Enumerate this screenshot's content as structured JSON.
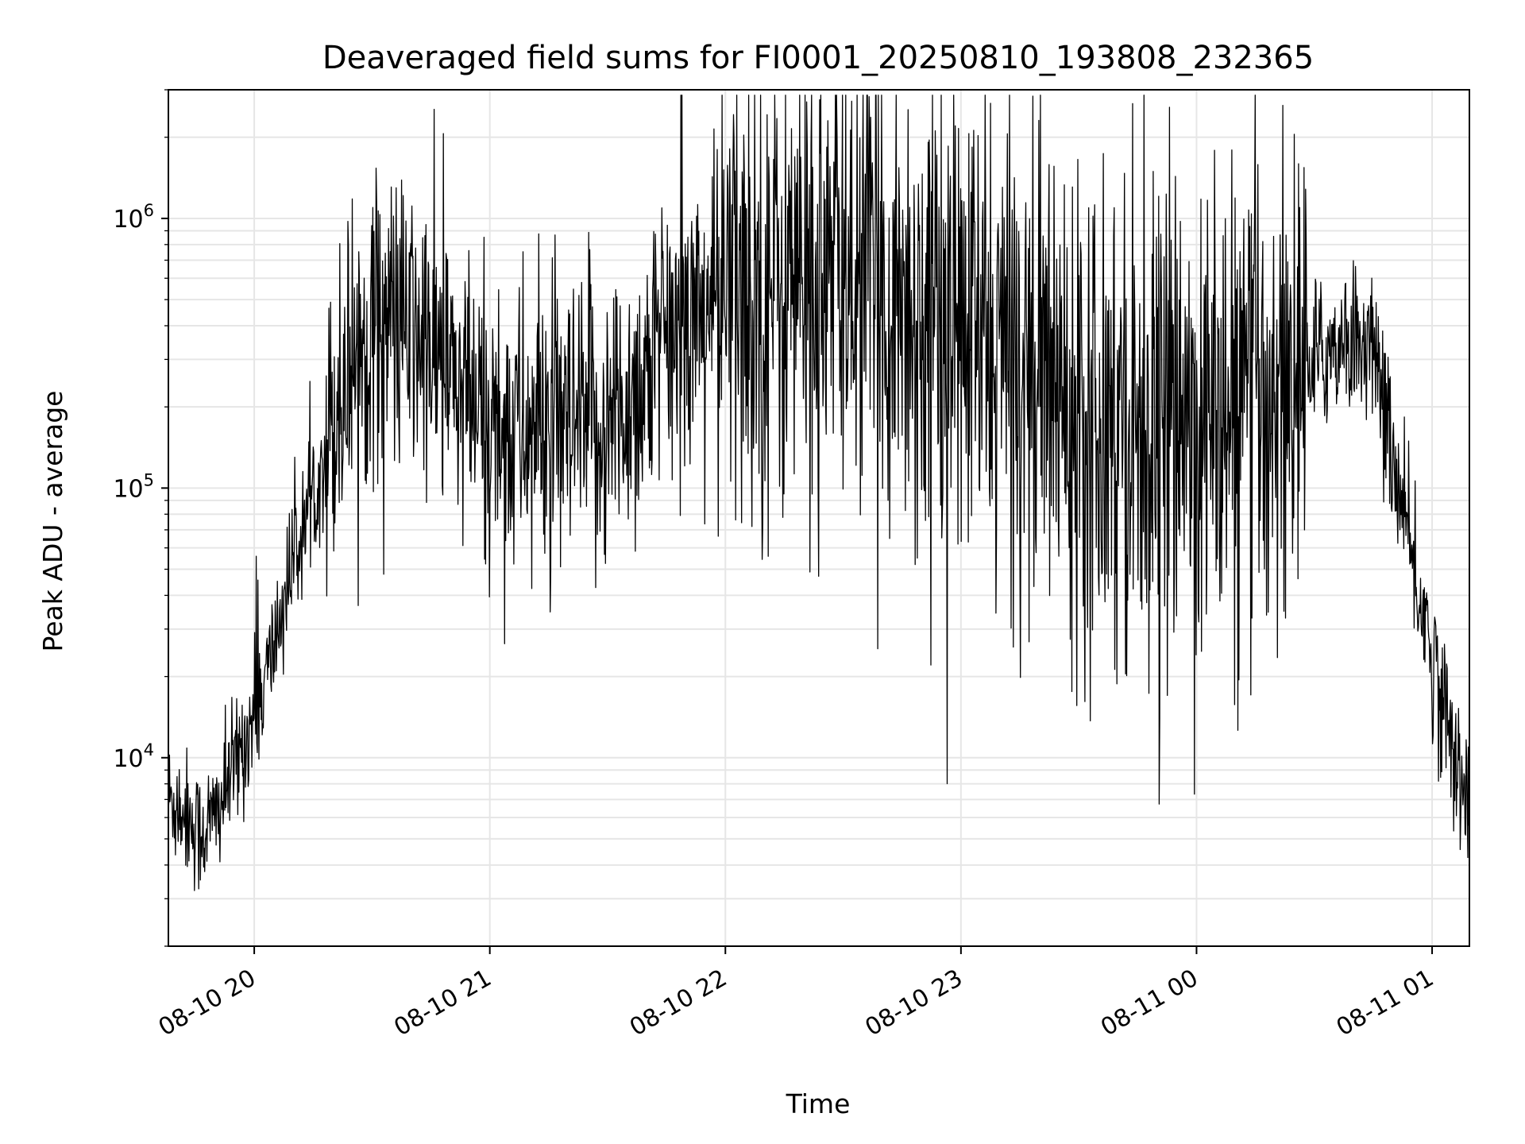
{
  "chart_data": {
    "type": "line",
    "title": "Deaveraged field sums for FI0001_20250810_193808_232365",
    "xlabel": "Time",
    "ylabel": "Peak ADU - average",
    "y_scale": "log",
    "ylim": [
      2000,
      3000000
    ],
    "xlim": [
      "2025-08-10 19:38:08",
      "2025-08-11 01:09:30"
    ],
    "grid": true,
    "line_color": "#000000",
    "x_ticks": [
      {
        "t": "2025-08-10 20:00",
        "label": "08-10 20"
      },
      {
        "t": "2025-08-10 21:00",
        "label": "08-10 21"
      },
      {
        "t": "2025-08-10 22:00",
        "label": "08-10 22"
      },
      {
        "t": "2025-08-10 23:00",
        "label": "08-10 23"
      },
      {
        "t": "2025-08-11 00:00",
        "label": "08-11 00"
      },
      {
        "t": "2025-08-11 01:00",
        "label": "08-11 01"
      }
    ],
    "y_ticks": [
      {
        "value": 10000,
        "base": "10",
        "exp": "4"
      },
      {
        "value": 100000,
        "base": "10",
        "exp": "5"
      },
      {
        "value": 1000000,
        "base": "10",
        "exp": "6"
      }
    ],
    "series": [
      {
        "x": [
          "2025-08-10 19:38:08",
          "2025-08-10 19:42",
          "2025-08-10 19:46",
          "2025-08-10 19:50",
          "2025-08-10 19:54",
          "2025-08-10 19:58",
          "2025-08-10 20:02",
          "2025-08-10 20:06",
          "2025-08-10 20:10",
          "2025-08-10 20:15",
          "2025-08-10 20:20",
          "2025-08-10 20:25",
          "2025-08-10 20:30",
          "2025-08-10 20:35",
          "2025-08-10 20:40",
          "2025-08-10 20:45",
          "2025-08-10 20:50",
          "2025-08-10 20:55",
          "2025-08-10 21:00",
          "2025-08-10 21:10",
          "2025-08-10 21:20",
          "2025-08-10 21:30",
          "2025-08-10 21:40",
          "2025-08-10 21:50",
          "2025-08-10 22:00",
          "2025-08-10 22:10",
          "2025-08-10 22:20",
          "2025-08-10 22:30",
          "2025-08-10 22:40",
          "2025-08-10 22:50",
          "2025-08-10 23:00",
          "2025-08-10 23:10",
          "2025-08-10 23:20",
          "2025-08-10 23:30",
          "2025-08-10 23:40",
          "2025-08-10 23:50",
          "2025-08-11 00:00",
          "2025-08-11 00:10",
          "2025-08-11 00:20",
          "2025-08-11 00:30",
          "2025-08-11 00:36",
          "2025-08-11 00:40",
          "2025-08-11 00:44",
          "2025-08-11 00:48",
          "2025-08-11 00:52",
          "2025-08-11 00:56",
          "2025-08-11 01:00",
          "2025-08-11 01:05",
          "2025-08-11 01:09:30"
        ],
        "y": [
          7000,
          6500,
          5200,
          6000,
          8500,
          12000,
          17000,
          30000,
          55000,
          95000,
          180000,
          300000,
          400000,
          420000,
          370000,
          320000,
          250000,
          190000,
          170000,
          160000,
          150000,
          170000,
          260000,
          420000,
          500000,
          560000,
          560000,
          620000,
          560000,
          420000,
          380000,
          320000,
          270000,
          220000,
          190000,
          175000,
          165000,
          175000,
          230000,
          290000,
          350000,
          360000,
          340000,
          200000,
          85000,
          45000,
          24000,
          11000,
          7500
        ]
      }
    ]
  }
}
